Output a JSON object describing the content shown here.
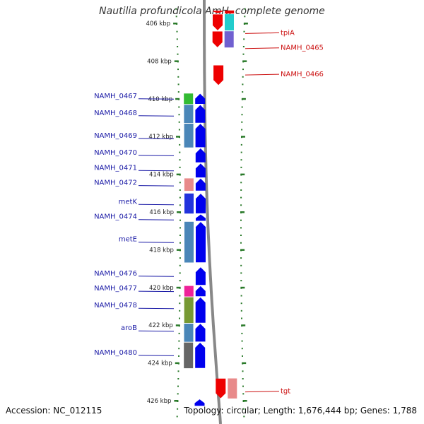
{
  "title": "Nautilia profundicola AmH, complete genome",
  "footer": {
    "accession": "Accession: NC_012115",
    "summary": "Topology: circular; Length: 1,676,444 bp; Genes: 1,788"
  },
  "ticks": [
    {
      "label": "406 kbp",
      "kb": 406
    },
    {
      "label": "408 kbp",
      "kb": 408
    },
    {
      "label": "410 kbp",
      "kb": 410
    },
    {
      "label": "412 kbp",
      "kb": 412
    },
    {
      "label": "414 kbp",
      "kb": 414
    },
    {
      "label": "416 kbp",
      "kb": 416
    },
    {
      "label": "418 kbp",
      "kb": 418
    },
    {
      "label": "420 kbp",
      "kb": 420
    },
    {
      "label": "422 kbp",
      "kb": 422
    },
    {
      "label": "424 kbp",
      "kb": 424
    },
    {
      "label": "426 kbp",
      "kb": 426
    }
  ],
  "genes_reverse": [
    {
      "name": "",
      "start": 405.3,
      "end": 405.5,
      "cog": "#e60000"
    },
    {
      "name": "tpiA",
      "start": 405.5,
      "end": 406.4,
      "cog": "#22cccc"
    },
    {
      "name": "NAMH_0465",
      "start": 406.4,
      "end": 407.3,
      "cog": "#7060d0"
    },
    {
      "name": "NAMH_0466",
      "start": 408.2,
      "end": 409.3,
      "cog": ""
    },
    {
      "name": "tgt",
      "start": 424.8,
      "end": 425.9,
      "cog": "#e88a8a"
    }
  ],
  "genes_forward": [
    {
      "name": "NAMH_0467",
      "start": 409.7,
      "end": 410.3,
      "cog": "#33bb33"
    },
    {
      "name": "NAMH_0468",
      "start": 410.3,
      "end": 411.3,
      "cog": "#4a86b8"
    },
    {
      "name": "NAMH_0469",
      "start": 411.3,
      "end": 412.6,
      "cog": "#4a86b8"
    },
    {
      "name": "NAMH_0470",
      "start": 412.6,
      "end": 413.4,
      "cog": ""
    },
    {
      "name": "NAMH_0471",
      "start": 413.4,
      "end": 414.2,
      "cog": ""
    },
    {
      "name": "NAMH_0472",
      "start": 414.2,
      "end": 414.9,
      "cog": "#e88a8a"
    },
    {
      "name": "metK",
      "start": 415.0,
      "end": 416.1,
      "cog": "#2233dd"
    },
    {
      "name": "NAMH_0474",
      "start": 416.1,
      "end": 416.5,
      "cog": ""
    },
    {
      "name": "metE",
      "start": 416.5,
      "end": 418.7,
      "cog": "#4a86b8"
    },
    {
      "name": "NAMH_0476",
      "start": 418.9,
      "end": 419.9,
      "cog": ""
    },
    {
      "name": "NAMH_0477",
      "start": 419.9,
      "end": 420.5,
      "cog": "#ee2299"
    },
    {
      "name": "NAMH_0478",
      "start": 420.5,
      "end": 421.9,
      "cog": "#779933"
    },
    {
      "name": "aroB",
      "start": 421.9,
      "end": 422.9,
      "cog": "#4a86b8"
    },
    {
      "name": "NAMH_0480",
      "start": 422.9,
      "end": 424.3,
      "cog": "#666666"
    },
    {
      "name": "",
      "start": 425.9,
      "end": 426.3,
      "cog": ""
    }
  ],
  "labels_forward": [
    {
      "name": "NAMH_0467",
      "kb": 410.0
    },
    {
      "name": "NAMH_0468",
      "kb": 410.9
    },
    {
      "name": "NAMH_0469",
      "kb": 412.1
    },
    {
      "name": "NAMH_0470",
      "kb": 413.0
    },
    {
      "name": "NAMH_0471",
      "kb": 413.8
    },
    {
      "name": "NAMH_0472",
      "kb": 414.6
    },
    {
      "name": "metK",
      "kb": 415.6
    },
    {
      "name": "NAMH_0474",
      "kb": 416.4
    },
    {
      "name": "metE",
      "kb": 417.6
    },
    {
      "name": "NAMH_0476",
      "kb": 419.4
    },
    {
      "name": "NAMH_0477",
      "kb": 420.2
    },
    {
      "name": "NAMH_0478",
      "kb": 421.1
    },
    {
      "name": "aroB",
      "kb": 422.3
    },
    {
      "name": "NAMH_0480",
      "kb": 423.6
    }
  ],
  "labels_reverse": [
    {
      "name": "tpiA",
      "kb": 406.5
    },
    {
      "name": "NAMH_0465",
      "kb": 407.3
    },
    {
      "name": "NAMH_0466",
      "kb": 408.7
    },
    {
      "name": "tgt",
      "kb": 425.5
    }
  ],
  "colors": {
    "forward_gene": "#0000ee",
    "reverse_gene": "#ee0000",
    "forward_label": "#1a1aa6",
    "reverse_label": "#cc1111",
    "tick": "#2a7a2a",
    "backbone": "#888888"
  }
}
